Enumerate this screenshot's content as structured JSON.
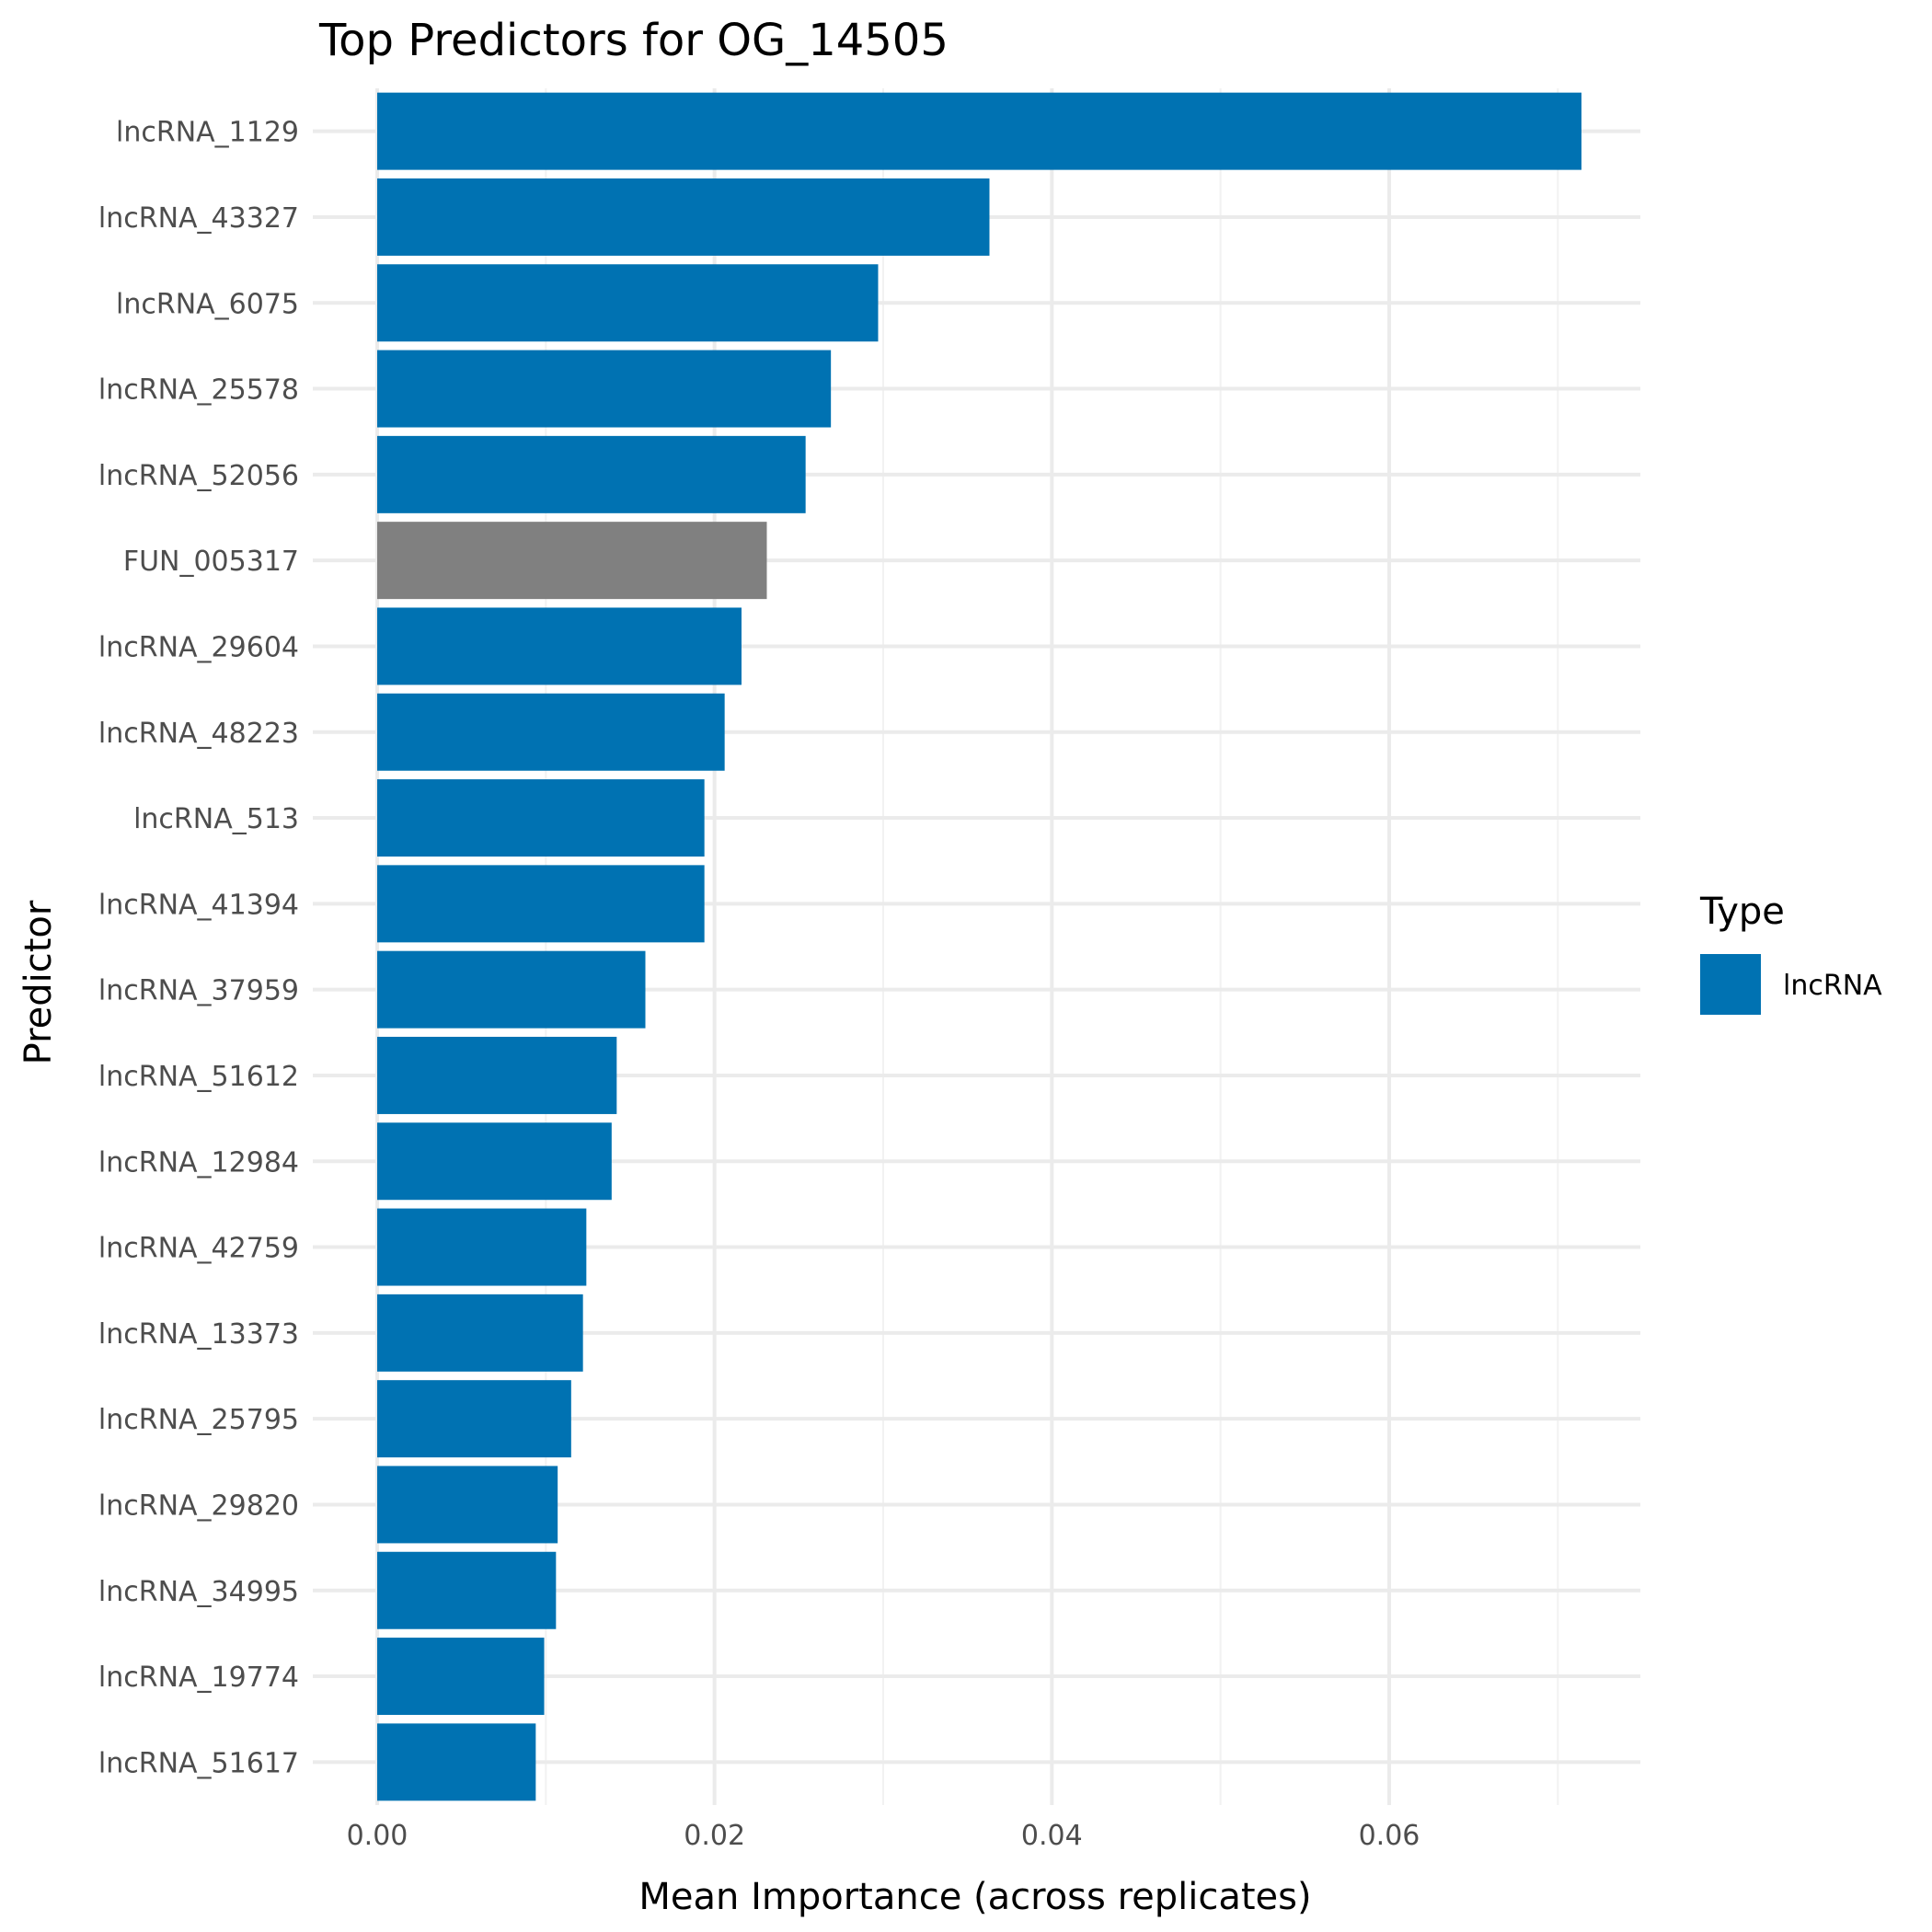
{
  "chart_data": {
    "type": "bar",
    "orientation": "horizontal",
    "title": "Top Predictors for OG_14505",
    "xlabel": "Mean Importance (across replicates)",
    "ylabel": "Predictor",
    "xlim": [
      0,
      0.075
    ],
    "x_ticks": [
      0,
      0.02,
      0.04,
      0.06
    ],
    "x_tick_labels": [
      "0.00",
      "0.02",
      "0.04",
      "0.06"
    ],
    "grid": true,
    "legend": {
      "title": "Type",
      "placement": "right",
      "entries": [
        {
          "label": "lncRNA",
          "color": "#0072B2"
        }
      ]
    },
    "colors": {
      "lncRNA": "#0072B2",
      "other": "#808080"
    },
    "categories": [
      "lncRNA_1129",
      "lncRNA_43327",
      "lncRNA_6075",
      "lncRNA_25578",
      "lncRNA_52056",
      "FUN_005317",
      "lncRNA_29604",
      "lncRNA_48223",
      "lncRNA_513",
      "lncRNA_41394",
      "lncRNA_37959",
      "lncRNA_51612",
      "lncRNA_12984",
      "lncRNA_42759",
      "lncRNA_13373",
      "lncRNA_25795",
      "lncRNA_29820",
      "lncRNA_34995",
      "lncRNA_19774",
      "lncRNA_51617"
    ],
    "values": [
      0.0714,
      0.0363,
      0.0297,
      0.0269,
      0.0254,
      0.0231,
      0.0216,
      0.0206,
      0.0194,
      0.0194,
      0.0159,
      0.0142,
      0.0139,
      0.0124,
      0.0122,
      0.0115,
      0.0107,
      0.0106,
      0.0099,
      0.0094
    ],
    "types": [
      "lncRNA",
      "lncRNA",
      "lncRNA",
      "lncRNA",
      "lncRNA",
      "other",
      "lncRNA",
      "lncRNA",
      "lncRNA",
      "lncRNA",
      "lncRNA",
      "lncRNA",
      "lncRNA",
      "lncRNA",
      "lncRNA",
      "lncRNA",
      "lncRNA",
      "lncRNA",
      "lncRNA",
      "lncRNA"
    ]
  }
}
